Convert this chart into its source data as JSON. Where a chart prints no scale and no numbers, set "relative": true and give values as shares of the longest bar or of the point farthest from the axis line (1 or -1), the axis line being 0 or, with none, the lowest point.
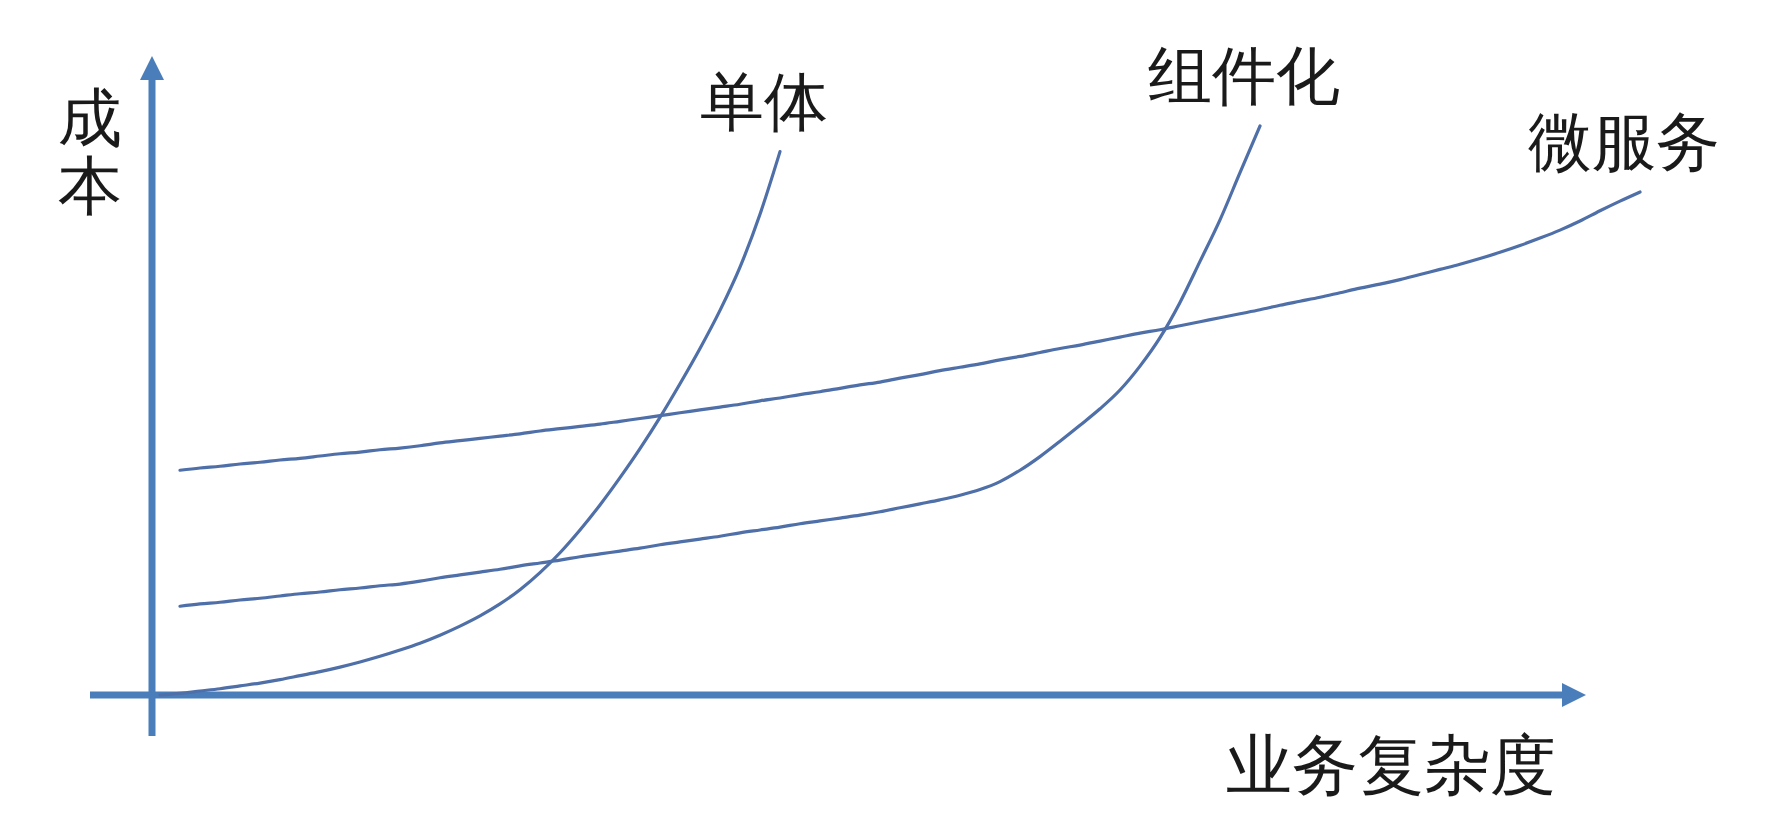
{
  "chart_data": {
    "type": "line",
    "relative": true,
    "xlabel": "业务复杂度",
    "ylabel": "成本",
    "categories": [
      null,
      null,
      null,
      null,
      null,
      null,
      null,
      null,
      null,
      null,
      null,
      null,
      null,
      null,
      null,
      null,
      null,
      null,
      null,
      null,
      null,
      null,
      null,
      null,
      null,
      null,
      null,
      null,
      null,
      null,
      null,
      null,
      null,
      null,
      null,
      null,
      null,
      null,
      null,
      null,
      null,
      null,
      null,
      null,
      null,
      null,
      null,
      null,
      null,
      null,
      null,
      null,
      null,
      null,
      null,
      null,
      null,
      null,
      null,
      null,
      null,
      null,
      null,
      null,
      null,
      null,
      null,
      null,
      null,
      null,
      null,
      null,
      null,
      null,
      null
    ],
    "series": [
      {
        "name": "单体",
        "color": "#4f6fa8",
        "values": [
          0,
          0.003,
          0.007,
          0.011,
          0.016,
          0.021,
          0.027,
          0.034,
          0.041,
          0.049,
          0.058,
          0.068,
          0.079,
          0.091,
          0.105,
          0.121,
          0.139,
          0.16,
          0.185,
          0.215,
          0.25,
          0.29,
          0.334,
          0.382,
          0.433,
          0.488,
          0.547,
          0.609,
          0.676,
          0.752,
          0.845,
          0.955,
          null,
          null,
          null,
          null,
          null,
          null,
          null,
          null,
          null,
          null,
          null,
          null,
          null,
          null,
          null,
          null,
          null,
          null,
          null,
          null,
          null,
          null,
          null,
          null,
          null,
          null,
          null,
          null,
          null,
          null,
          null,
          null,
          null,
          null,
          null,
          null,
          null,
          null,
          null,
          null,
          null,
          null,
          null
        ]
      },
      {
        "name": "组件化",
        "color": "#4f6fa8",
        "values": [
          null,
          0.156,
          0.16,
          0.163,
          0.167,
          0.17,
          0.174,
          0.178,
          0.181,
          0.185,
          0.188,
          0.192,
          0.195,
          0.2,
          0.206,
          0.211,
          0.216,
          0.221,
          0.227,
          0.232,
          0.237,
          0.243,
          0.248,
          0.253,
          0.258,
          0.264,
          0.269,
          0.274,
          0.279,
          0.285,
          0.29,
          0.295,
          0.301,
          0.306,
          0.311,
          0.316,
          0.322,
          0.329,
          0.336,
          0.343,
          0.351,
          0.361,
          0.375,
          0.395,
          0.419,
          0.446,
          0.474,
          0.503,
          0.536,
          0.578,
          0.628,
          0.69,
          0.762,
          0.835,
          0.918,
          1,
          null,
          null,
          null,
          null,
          null,
          null,
          null,
          null,
          null,
          null,
          null,
          null,
          null,
          null,
          null,
          null,
          null,
          null,
          null
        ]
      },
      {
        "name": "微服务",
        "color": "#4f6fa8",
        "values": [
          null,
          0.395,
          0.399,
          0.402,
          0.406,
          0.409,
          0.413,
          0.416,
          0.42,
          0.424,
          0.427,
          0.431,
          0.434,
          0.438,
          0.443,
          0.447,
          0.451,
          0.455,
          0.459,
          0.464,
          0.468,
          0.472,
          0.476,
          0.481,
          0.486,
          0.491,
          0.496,
          0.501,
          0.506,
          0.511,
          0.517,
          0.522,
          0.528,
          0.533,
          0.539,
          0.545,
          0.55,
          0.557,
          0.563,
          0.57,
          0.576,
          0.582,
          0.589,
          0.595,
          0.602,
          0.609,
          0.615,
          0.622,
          0.629,
          0.636,
          0.642,
          0.649,
          0.656,
          0.663,
          0.67,
          0.677,
          0.685,
          0.692,
          0.699,
          0.707,
          0.715,
          0.722,
          0.73,
          0.739,
          0.748,
          0.757,
          0.767,
          0.778,
          0.79,
          0.803,
          0.817,
          0.833,
          0.851,
          0.868,
          0.884
        ]
      }
    ]
  }
}
